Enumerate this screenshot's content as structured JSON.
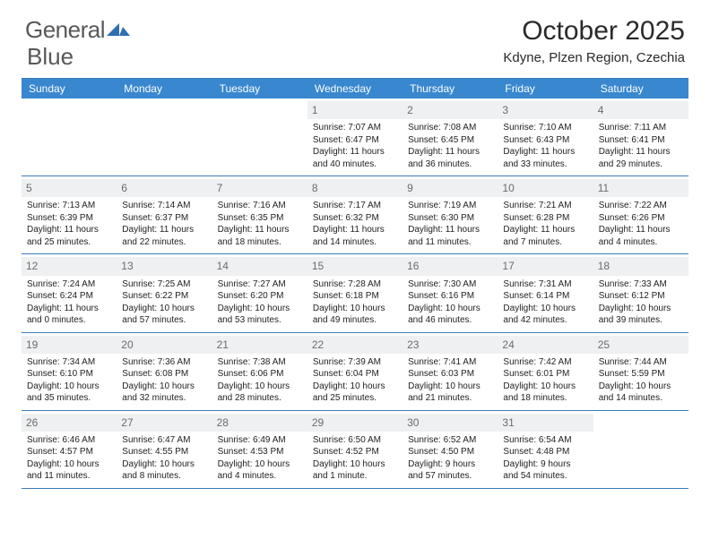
{
  "brand": {
    "name_a": "General",
    "name_b": "Blue"
  },
  "title": {
    "month": "October 2025",
    "location": "Kdyne, Plzen Region, Czechia"
  },
  "colors": {
    "header_bg": "#3887cf",
    "header_text": "#ffffff",
    "rule": "#3e7cb8",
    "daynum_bg": "#eef0f1",
    "daynum_text": "#6a6c6e",
    "body_text": "#222222",
    "logo_text": "#57585a",
    "logo_mark": "#2f6fb2"
  },
  "daynames": [
    "Sunday",
    "Monday",
    "Tuesday",
    "Wednesday",
    "Thursday",
    "Friday",
    "Saturday"
  ],
  "weeks": [
    [
      {
        "n": "",
        "sr": "",
        "ss": "",
        "dl": ""
      },
      {
        "n": "",
        "sr": "",
        "ss": "",
        "dl": ""
      },
      {
        "n": "",
        "sr": "",
        "ss": "",
        "dl": ""
      },
      {
        "n": "1",
        "sr": "Sunrise: 7:07 AM",
        "ss": "Sunset: 6:47 PM",
        "dl": "Daylight: 11 hours and 40 minutes."
      },
      {
        "n": "2",
        "sr": "Sunrise: 7:08 AM",
        "ss": "Sunset: 6:45 PM",
        "dl": "Daylight: 11 hours and 36 minutes."
      },
      {
        "n": "3",
        "sr": "Sunrise: 7:10 AM",
        "ss": "Sunset: 6:43 PM",
        "dl": "Daylight: 11 hours and 33 minutes."
      },
      {
        "n": "4",
        "sr": "Sunrise: 7:11 AM",
        "ss": "Sunset: 6:41 PM",
        "dl": "Daylight: 11 hours and 29 minutes."
      }
    ],
    [
      {
        "n": "5",
        "sr": "Sunrise: 7:13 AM",
        "ss": "Sunset: 6:39 PM",
        "dl": "Daylight: 11 hours and 25 minutes."
      },
      {
        "n": "6",
        "sr": "Sunrise: 7:14 AM",
        "ss": "Sunset: 6:37 PM",
        "dl": "Daylight: 11 hours and 22 minutes."
      },
      {
        "n": "7",
        "sr": "Sunrise: 7:16 AM",
        "ss": "Sunset: 6:35 PM",
        "dl": "Daylight: 11 hours and 18 minutes."
      },
      {
        "n": "8",
        "sr": "Sunrise: 7:17 AM",
        "ss": "Sunset: 6:32 PM",
        "dl": "Daylight: 11 hours and 14 minutes."
      },
      {
        "n": "9",
        "sr": "Sunrise: 7:19 AM",
        "ss": "Sunset: 6:30 PM",
        "dl": "Daylight: 11 hours and 11 minutes."
      },
      {
        "n": "10",
        "sr": "Sunrise: 7:21 AM",
        "ss": "Sunset: 6:28 PM",
        "dl": "Daylight: 11 hours and 7 minutes."
      },
      {
        "n": "11",
        "sr": "Sunrise: 7:22 AM",
        "ss": "Sunset: 6:26 PM",
        "dl": "Daylight: 11 hours and 4 minutes."
      }
    ],
    [
      {
        "n": "12",
        "sr": "Sunrise: 7:24 AM",
        "ss": "Sunset: 6:24 PM",
        "dl": "Daylight: 11 hours and 0 minutes."
      },
      {
        "n": "13",
        "sr": "Sunrise: 7:25 AM",
        "ss": "Sunset: 6:22 PM",
        "dl": "Daylight: 10 hours and 57 minutes."
      },
      {
        "n": "14",
        "sr": "Sunrise: 7:27 AM",
        "ss": "Sunset: 6:20 PM",
        "dl": "Daylight: 10 hours and 53 minutes."
      },
      {
        "n": "15",
        "sr": "Sunrise: 7:28 AM",
        "ss": "Sunset: 6:18 PM",
        "dl": "Daylight: 10 hours and 49 minutes."
      },
      {
        "n": "16",
        "sr": "Sunrise: 7:30 AM",
        "ss": "Sunset: 6:16 PM",
        "dl": "Daylight: 10 hours and 46 minutes."
      },
      {
        "n": "17",
        "sr": "Sunrise: 7:31 AM",
        "ss": "Sunset: 6:14 PM",
        "dl": "Daylight: 10 hours and 42 minutes."
      },
      {
        "n": "18",
        "sr": "Sunrise: 7:33 AM",
        "ss": "Sunset: 6:12 PM",
        "dl": "Daylight: 10 hours and 39 minutes."
      }
    ],
    [
      {
        "n": "19",
        "sr": "Sunrise: 7:34 AM",
        "ss": "Sunset: 6:10 PM",
        "dl": "Daylight: 10 hours and 35 minutes."
      },
      {
        "n": "20",
        "sr": "Sunrise: 7:36 AM",
        "ss": "Sunset: 6:08 PM",
        "dl": "Daylight: 10 hours and 32 minutes."
      },
      {
        "n": "21",
        "sr": "Sunrise: 7:38 AM",
        "ss": "Sunset: 6:06 PM",
        "dl": "Daylight: 10 hours and 28 minutes."
      },
      {
        "n": "22",
        "sr": "Sunrise: 7:39 AM",
        "ss": "Sunset: 6:04 PM",
        "dl": "Daylight: 10 hours and 25 minutes."
      },
      {
        "n": "23",
        "sr": "Sunrise: 7:41 AM",
        "ss": "Sunset: 6:03 PM",
        "dl": "Daylight: 10 hours and 21 minutes."
      },
      {
        "n": "24",
        "sr": "Sunrise: 7:42 AM",
        "ss": "Sunset: 6:01 PM",
        "dl": "Daylight: 10 hours and 18 minutes."
      },
      {
        "n": "25",
        "sr": "Sunrise: 7:44 AM",
        "ss": "Sunset: 5:59 PM",
        "dl": "Daylight: 10 hours and 14 minutes."
      }
    ],
    [
      {
        "n": "26",
        "sr": "Sunrise: 6:46 AM",
        "ss": "Sunset: 4:57 PM",
        "dl": "Daylight: 10 hours and 11 minutes."
      },
      {
        "n": "27",
        "sr": "Sunrise: 6:47 AM",
        "ss": "Sunset: 4:55 PM",
        "dl": "Daylight: 10 hours and 8 minutes."
      },
      {
        "n": "28",
        "sr": "Sunrise: 6:49 AM",
        "ss": "Sunset: 4:53 PM",
        "dl": "Daylight: 10 hours and 4 minutes."
      },
      {
        "n": "29",
        "sr": "Sunrise: 6:50 AM",
        "ss": "Sunset: 4:52 PM",
        "dl": "Daylight: 10 hours and 1 minute."
      },
      {
        "n": "30",
        "sr": "Sunrise: 6:52 AM",
        "ss": "Sunset: 4:50 PM",
        "dl": "Daylight: 9 hours and 57 minutes."
      },
      {
        "n": "31",
        "sr": "Sunrise: 6:54 AM",
        "ss": "Sunset: 4:48 PM",
        "dl": "Daylight: 9 hours and 54 minutes."
      },
      {
        "n": "",
        "sr": "",
        "ss": "",
        "dl": ""
      }
    ]
  ]
}
